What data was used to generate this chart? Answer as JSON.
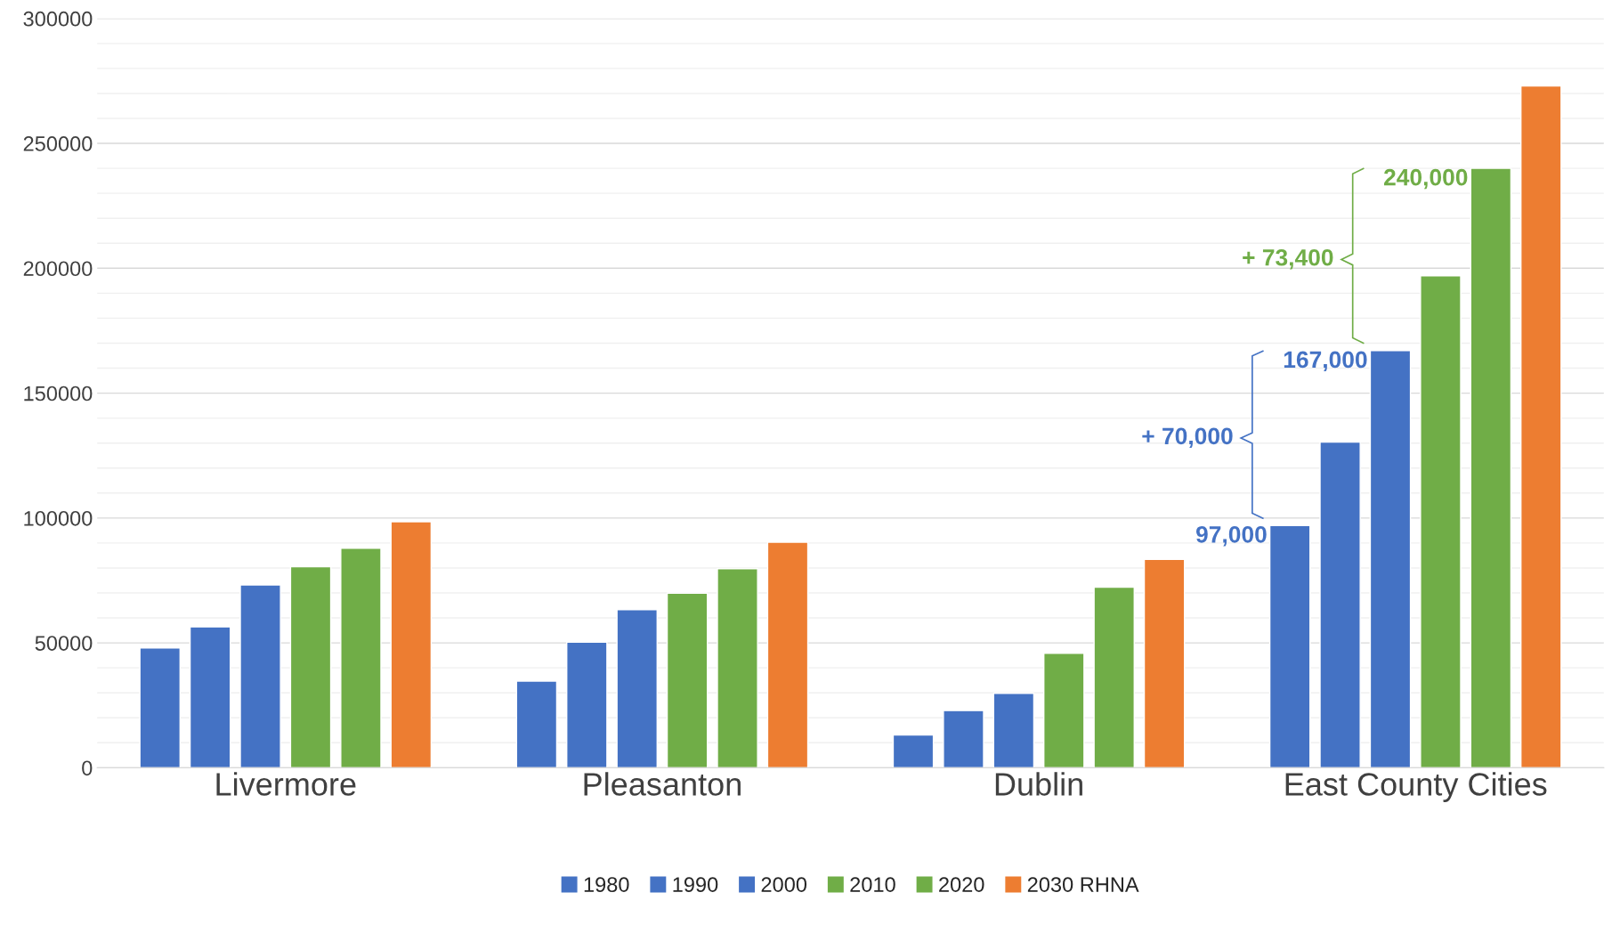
{
  "chart_data": {
    "type": "bar",
    "categories": [
      "Livermore",
      "Pleasanton",
      "Dublin",
      "East County Cities"
    ],
    "series": [
      {
        "name": "1980",
        "color": "#4472c4",
        "values": [
          48000,
          34700,
          13100,
          97000
        ]
      },
      {
        "name": "1990",
        "color": "#4472c4",
        "values": [
          56400,
          50300,
          22900,
          130400
        ]
      },
      {
        "name": "2000",
        "color": "#4472c4",
        "values": [
          73200,
          63300,
          29800,
          167000
        ]
      },
      {
        "name": "2010",
        "color": "#70ad47",
        "values": [
          80500,
          69900,
          45800,
          197000
        ]
      },
      {
        "name": "2020",
        "color": "#70ad47",
        "values": [
          87900,
          79700,
          72300,
          240000
        ]
      },
      {
        "name": "2030 RHNA",
        "color": "#ed7d31",
        "values": [
          98500,
          90300,
          83400,
          273000
        ]
      }
    ],
    "ylim": [
      0,
      300000
    ],
    "yticks": [
      0,
      50000,
      100000,
      150000,
      200000,
      250000,
      300000
    ],
    "grid": "y",
    "legend": "bottom",
    "annotations": [
      "97,000",
      "+ 70,000",
      "167,000",
      "+ 73,400",
      "240,000"
    ]
  }
}
